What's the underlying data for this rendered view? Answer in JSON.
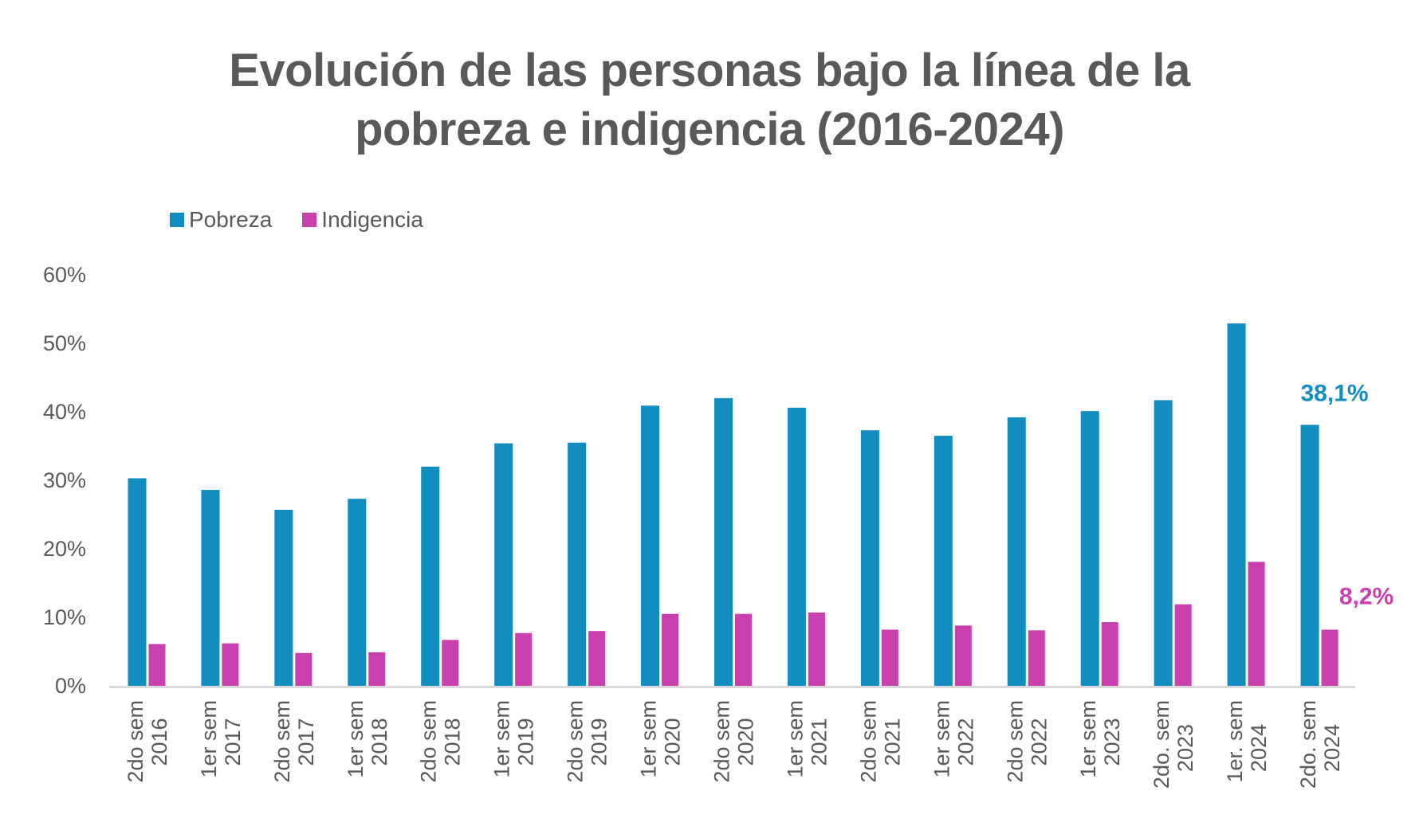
{
  "title_lines": [
    "Evolución de las personas bajo la línea de la",
    "pobreza e indigencia (2016-2024)"
  ],
  "colors": {
    "pobreza": "#128DC0",
    "indigencia": "#C841AF",
    "text": "#595959",
    "axis": "#D9D9D9"
  },
  "chart_data": {
    "type": "bar",
    "title": "Evolución de las personas bajo la línea de la pobreza e indigencia (2016-2024)",
    "xlabel": "",
    "ylabel": "",
    "ylim": [
      0,
      60
    ],
    "yticks": [
      "0%",
      "10%",
      "20%",
      "30%",
      "40%",
      "50%",
      "60%"
    ],
    "ytick_values": [
      0,
      10,
      20,
      30,
      40,
      50,
      60
    ],
    "grid": false,
    "legend": {
      "placement": "top-left",
      "entries": [
        "Pobreza",
        "Indigencia"
      ]
    },
    "categories": [
      [
        "2do sem",
        "2016"
      ],
      [
        "1er sem",
        "2017"
      ],
      [
        "2do sem",
        "2017"
      ],
      [
        "1er sem",
        "2018"
      ],
      [
        "2do sem",
        "2018"
      ],
      [
        "1er sem",
        "2019"
      ],
      [
        "2do sem",
        "2019"
      ],
      [
        "1er sem",
        "2020"
      ],
      [
        "2do sem",
        "2020"
      ],
      [
        "1er sem",
        "2021"
      ],
      [
        "2do sem",
        "2021"
      ],
      [
        "1er sem",
        "2022"
      ],
      [
        "2do sem",
        "2022"
      ],
      [
        "1er sem",
        "2023"
      ],
      [
        "2do. sem",
        "2023"
      ],
      [
        "1er. sem",
        "2024"
      ],
      [
        "2do. sem",
        "2024"
      ]
    ],
    "series": [
      {
        "name": "Pobreza",
        "values": [
          30.3,
          28.6,
          25.7,
          27.3,
          32.0,
          35.4,
          35.5,
          40.9,
          42.0,
          40.6,
          37.3,
          36.5,
          39.2,
          40.1,
          41.7,
          52.9,
          38.1
        ]
      },
      {
        "name": "Indigencia",
        "values": [
          6.1,
          6.2,
          4.8,
          4.9,
          6.7,
          7.7,
          8.0,
          10.5,
          10.5,
          10.7,
          8.2,
          8.8,
          8.1,
          9.3,
          11.9,
          18.1,
          8.2
        ]
      }
    ],
    "annotations": [
      {
        "series": "Pobreza",
        "category_index": 16,
        "text": "38,1%"
      },
      {
        "series": "Indigencia",
        "category_index": 16,
        "text": "8,2%"
      }
    ]
  }
}
